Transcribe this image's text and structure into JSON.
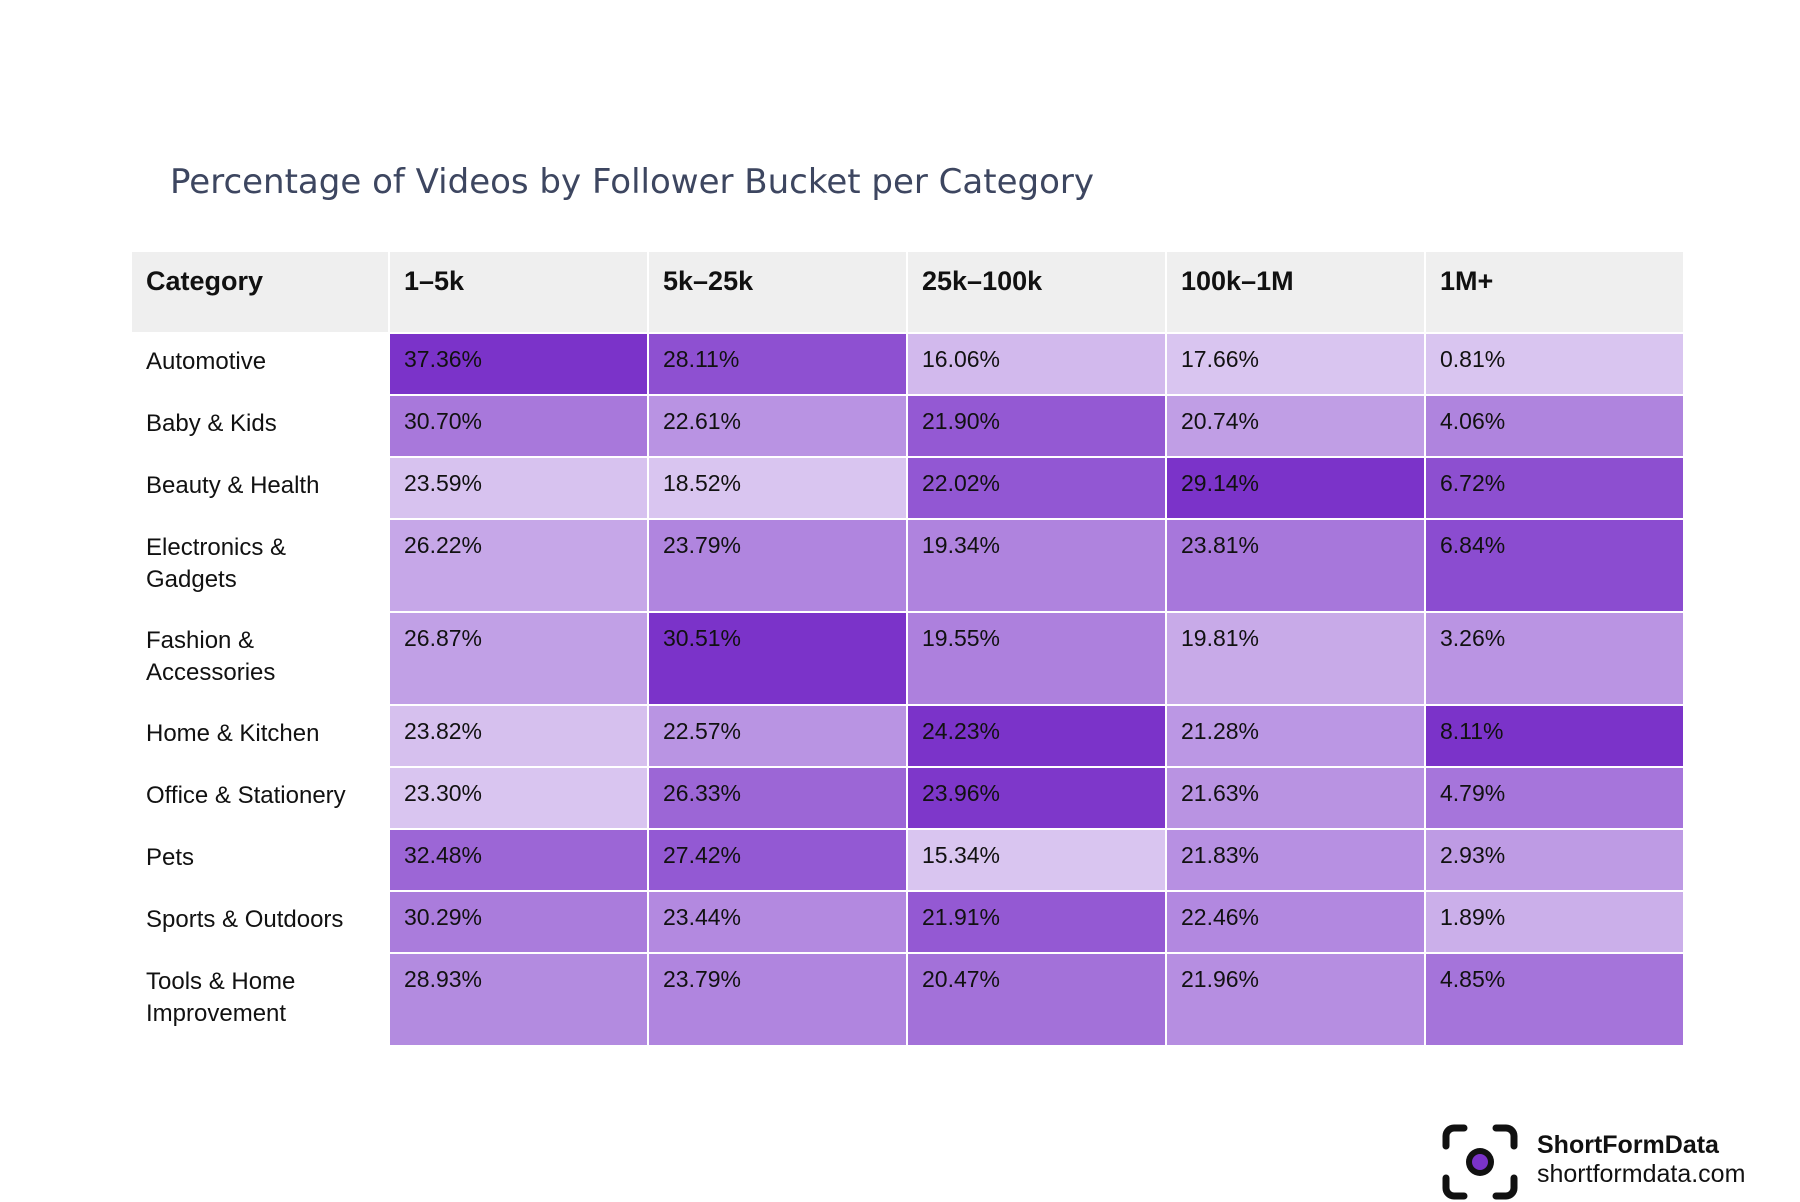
{
  "chart_data": {
    "type": "heatmap",
    "title": "Percentage of Videos by Follower Bucket per Category",
    "header": [
      "Category",
      "1–5k",
      "5k–25k",
      "25k–100k",
      "100k–1M",
      "1M+"
    ],
    "rows": [
      {
        "category": "Automotive",
        "values": [
          "37.36%",
          "28.11%",
          "16.06%",
          "17.66%",
          "0.81%"
        ]
      },
      {
        "category": "Baby & Kids",
        "values": [
          "30.70%",
          "22.61%",
          "21.90%",
          "20.74%",
          "4.06%"
        ]
      },
      {
        "category": "Beauty & Health",
        "values": [
          "23.59%",
          "18.52%",
          "22.02%",
          "29.14%",
          "6.72%"
        ]
      },
      {
        "category": "Electronics & Gadgets",
        "values": [
          "26.22%",
          "23.79%",
          "19.34%",
          "23.81%",
          "6.84%"
        ]
      },
      {
        "category": "Fashion & Accessories",
        "values": [
          "26.87%",
          "30.51%",
          "19.55%",
          "19.81%",
          "3.26%"
        ]
      },
      {
        "category": "Home & Kitchen",
        "values": [
          "23.82%",
          "22.57%",
          "24.23%",
          "21.28%",
          "8.11%"
        ]
      },
      {
        "category": "Office & Stationery",
        "values": [
          "23.30%",
          "26.33%",
          "23.96%",
          "21.63%",
          "4.79%"
        ]
      },
      {
        "category": "Pets",
        "values": [
          "32.48%",
          "27.42%",
          "15.34%",
          "21.83%",
          "2.93%"
        ]
      },
      {
        "category": "Sports & Outdoors",
        "values": [
          "30.29%",
          "23.44%",
          "21.91%",
          "22.46%",
          "1.89%"
        ]
      },
      {
        "category": "Tools & Home Improvement",
        "values": [
          "28.93%",
          "23.79%",
          "20.47%",
          "21.96%",
          "4.85%"
        ]
      }
    ],
    "color_scale": {
      "low": "#e6d9f5",
      "high": "#7b33c9",
      "scaled_per": "column"
    }
  },
  "brand": {
    "name": "ShortFormData",
    "url": "shortformdata.com",
    "icon": "camera-focus-icon",
    "icon_color": "#7b33c9"
  }
}
